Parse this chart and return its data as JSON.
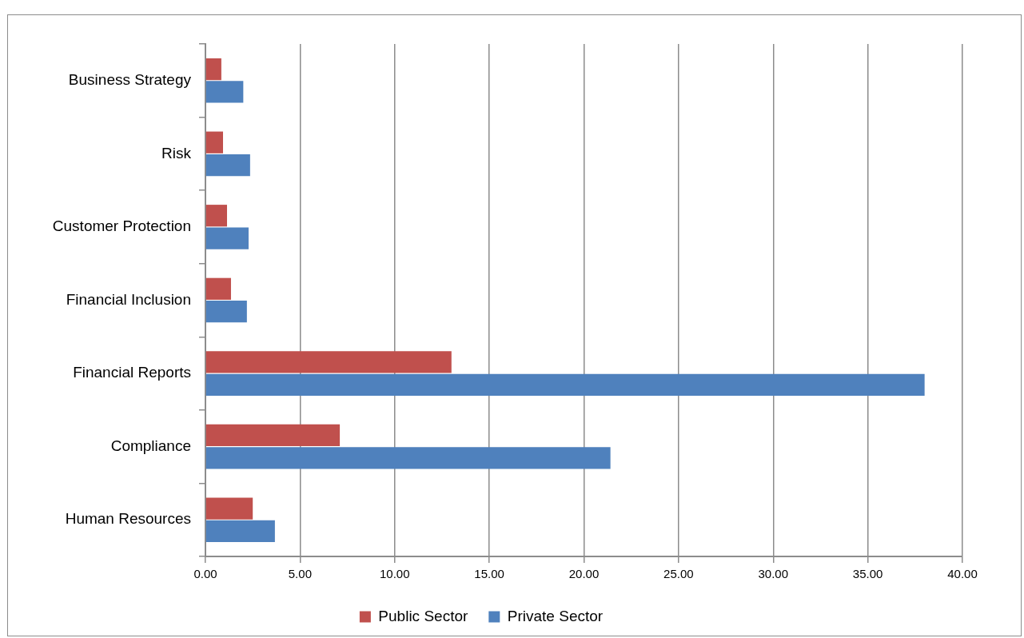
{
  "chart_data": {
    "type": "bar",
    "orientation": "horizontal",
    "categories": [
      "Business Strategy",
      "Risk",
      "Customer Protection",
      "Financial Inclusion",
      "Financial Reports",
      "Compliance",
      "Human Resources"
    ],
    "series": [
      {
        "name": "Public Sector",
        "color": "#c0504d",
        "values": [
          0.84,
          0.93,
          1.14,
          1.35,
          13.0,
          7.1,
          2.5
        ]
      },
      {
        "name": "Private Sector",
        "color": "#4f81bd",
        "values": [
          2.0,
          2.36,
          2.28,
          2.19,
          38.0,
          21.4,
          3.67
        ]
      }
    ],
    "xlim": [
      0,
      40
    ],
    "xticks": [
      {
        "value": 0,
        "label": "0.00"
      },
      {
        "value": 5,
        "label": "5.00"
      },
      {
        "value": 10,
        "label": "10.00"
      },
      {
        "value": 15,
        "label": "15.00"
      },
      {
        "value": 20,
        "label": "20.00"
      },
      {
        "value": 25,
        "label": "25.00"
      },
      {
        "value": 30,
        "label": "30.00"
      },
      {
        "value": 35,
        "label": "35.00"
      },
      {
        "value": 40,
        "label": "40.00"
      }
    ],
    "grid": "x",
    "legend": "bottom"
  }
}
